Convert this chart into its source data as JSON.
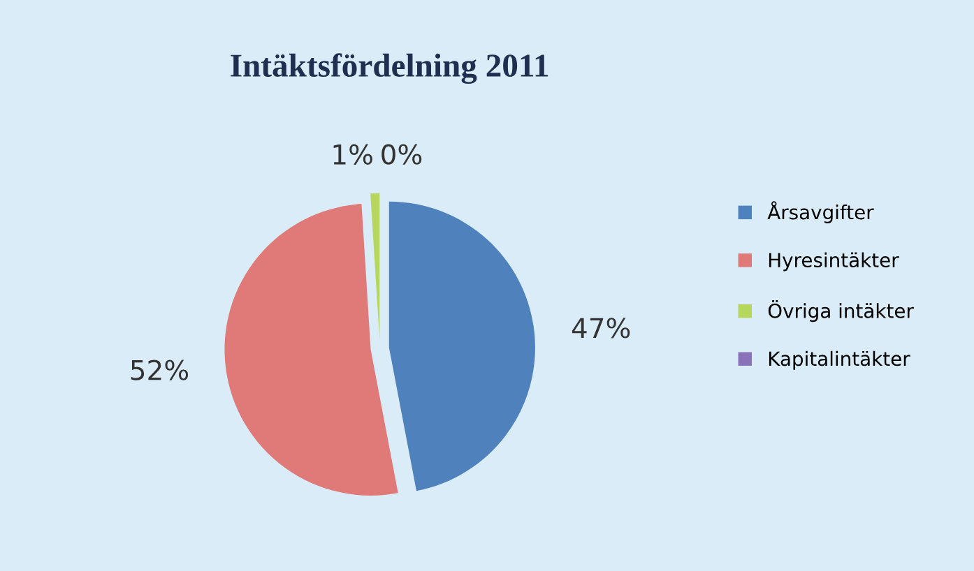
{
  "chart_data": {
    "type": "pie",
    "title": "Intäktsfördelning 2011",
    "categories": [
      "Årsavgifter",
      "Hyresintäkter",
      "Övriga intäkter",
      "Kapitalintäkter"
    ],
    "values": [
      47,
      52,
      1,
      0
    ],
    "colors": [
      "#4f81bd",
      "#e07a78",
      "#b6d65c",
      "#8a72b8"
    ],
    "value_labels": [
      "47%",
      "52%",
      "1%",
      "0%"
    ],
    "legend": "right"
  }
}
